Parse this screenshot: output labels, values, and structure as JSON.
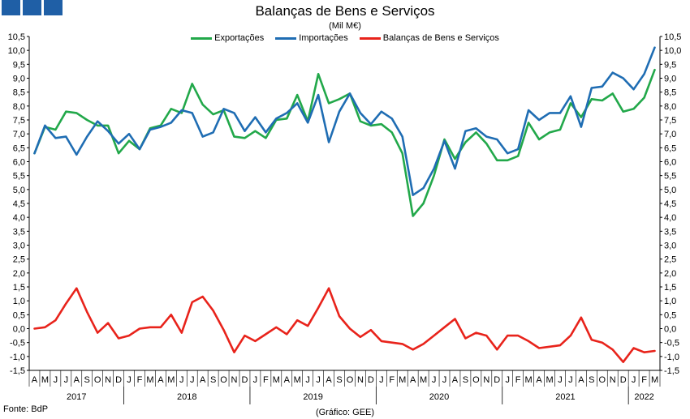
{
  "header": {
    "title": "Balanças de Bens e Serviços",
    "subtitle": "(Mil M€)"
  },
  "footer": {
    "source": "Fonte: BdP",
    "credit": "(Gráfico: GEE)"
  },
  "logo": {
    "icon": "gee-logo-icon",
    "color": "#1f5fa6"
  },
  "chart_data": {
    "type": "line",
    "title": "Balanças de Bens e Serviços",
    "subtitle": "(Mil M€)",
    "legend_position": "top-center",
    "grid": false,
    "ylim": [
      -1.5,
      10.5
    ],
    "yticks": [
      -1.5,
      -1.0,
      -0.5,
      0.0,
      0.5,
      1.0,
      1.5,
      2.0,
      2.5,
      3.0,
      3.5,
      4.0,
      4.5,
      5.0,
      5.5,
      6.0,
      6.5,
      7.0,
      7.5,
      8.0,
      8.5,
      9.0,
      9.5,
      10.0,
      10.5
    ],
    "ytick_labels": [
      "-1,5",
      "-1,0",
      "-0,5",
      "0,0",
      "0,5",
      "1,0",
      "1,5",
      "2,0",
      "2,5",
      "3,0",
      "3,5",
      "4,0",
      "4,5",
      "5,0",
      "5,5",
      "6,0",
      "6,5",
      "7,0",
      "7,5",
      "8,0",
      "8,5",
      "9,0",
      "9,5",
      "10,0",
      "10,5"
    ],
    "x_month_labels": [
      "A",
      "M",
      "J",
      "J",
      "A",
      "S",
      "O",
      "N",
      "D",
      "J",
      "F",
      "M",
      "A",
      "M",
      "J",
      "J",
      "A",
      "S",
      "O",
      "N",
      "D",
      "J",
      "F",
      "M",
      "A",
      "M",
      "J",
      "J",
      "A",
      "S",
      "O",
      "N",
      "D",
      "J",
      "F",
      "M",
      "A",
      "M",
      "J",
      "J",
      "A",
      "S",
      "O",
      "N",
      "D",
      "J",
      "F",
      "M",
      "A",
      "M",
      "J",
      "J",
      "A",
      "S",
      "O",
      "N",
      "D",
      "J",
      "F",
      "M"
    ],
    "x_year_groups": [
      {
        "label": "2017",
        "months": 9
      },
      {
        "label": "2018",
        "months": 12
      },
      {
        "label": "2019",
        "months": 12
      },
      {
        "label": "2020",
        "months": 12
      },
      {
        "label": "2021",
        "months": 12
      },
      {
        "label": "2022",
        "months": 3
      }
    ],
    "series": [
      {
        "name": "Exportações",
        "color": "#22a84a",
        "values": [
          6.3,
          7.25,
          7.15,
          7.8,
          7.75,
          7.5,
          7.3,
          7.3,
          6.3,
          6.75,
          6.45,
          7.2,
          7.3,
          7.9,
          7.75,
          8.8,
          8.05,
          7.7,
          7.85,
          6.9,
          6.85,
          7.1,
          6.85,
          7.5,
          7.55,
          8.4,
          7.45,
          9.15,
          8.1,
          8.25,
          8.45,
          7.45,
          7.3,
          7.35,
          7.05,
          6.3,
          4.05,
          4.5,
          5.5,
          6.8,
          6.1,
          6.7,
          7.05,
          6.65,
          6.05,
          6.05,
          6.2,
          7.4,
          6.8,
          7.05,
          7.15,
          8.1,
          7.6,
          8.25,
          8.2,
          8.45,
          7.8,
          7.9,
          8.3,
          9.3
        ]
      },
      {
        "name": "Importações",
        "color": "#1f6db3",
        "values": [
          6.3,
          7.3,
          6.85,
          6.9,
          6.25,
          6.9,
          7.45,
          7.1,
          6.65,
          7.0,
          6.45,
          7.15,
          7.25,
          7.4,
          7.85,
          7.75,
          6.9,
          7.05,
          7.9,
          7.75,
          7.1,
          7.6,
          7.05,
          7.55,
          7.75,
          8.1,
          7.4,
          8.4,
          6.7,
          7.8,
          8.45,
          7.75,
          7.35,
          7.8,
          7.55,
          6.9,
          4.8,
          5.05,
          5.75,
          6.75,
          5.75,
          7.1,
          7.2,
          6.9,
          6.8,
          6.3,
          6.45,
          7.85,
          7.5,
          7.75,
          7.75,
          8.35,
          7.25,
          8.65,
          8.7,
          9.2,
          9.0,
          8.6,
          9.15,
          10.1
        ]
      },
      {
        "name": "Balanças de Bens e Serviços",
        "color": "#e8231b",
        "values": [
          0.0,
          0.05,
          0.3,
          0.9,
          1.45,
          0.6,
          -0.15,
          0.2,
          -0.35,
          -0.25,
          0.0,
          0.05,
          0.05,
          0.5,
          -0.15,
          0.95,
          1.15,
          0.65,
          -0.05,
          -0.85,
          -0.25,
          -0.45,
          -0.2,
          0.05,
          -0.2,
          0.3,
          0.1,
          0.75,
          1.45,
          0.45,
          0.0,
          -0.3,
          -0.05,
          -0.45,
          -0.5,
          -0.55,
          -0.75,
          -0.55,
          -0.25,
          0.05,
          0.35,
          -0.35,
          -0.15,
          -0.25,
          -0.75,
          -0.25,
          -0.25,
          -0.45,
          -0.7,
          -0.65,
          -0.6,
          -0.25,
          0.4,
          -0.4,
          -0.5,
          -0.75,
          -1.2,
          -0.7,
          -0.85,
          -0.8
        ]
      }
    ]
  }
}
